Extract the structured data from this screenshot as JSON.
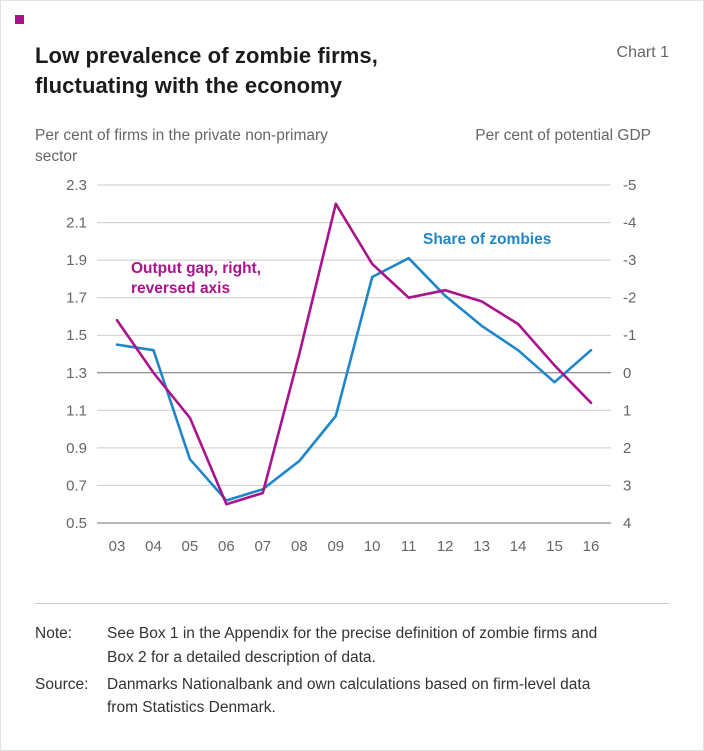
{
  "header": {
    "title_line1": "Low prevalence of zombie firms,",
    "title_line2": "fluctuating with the economy",
    "chart_label": "Chart 1"
  },
  "axis_titles": {
    "left": "Per cent of firms in the private non-primary sector",
    "right": "Per cent of potential GDP"
  },
  "colors": {
    "blue": "#1f86c9",
    "magenta": "#a9138c",
    "grid": "#cccccc",
    "axis_strong": "#707070",
    "tick_text": "#666666"
  },
  "chart_data": {
    "type": "line",
    "x": [
      "03",
      "04",
      "05",
      "06",
      "07",
      "08",
      "09",
      "10",
      "11",
      "12",
      "13",
      "14",
      "15",
      "16"
    ],
    "series": [
      {
        "name": "Share of zombies",
        "axis": "left",
        "color": "#1f86c9",
        "values": [
          1.45,
          1.42,
          0.84,
          0.62,
          0.68,
          0.83,
          1.07,
          1.81,
          1.91,
          1.71,
          1.55,
          1.42,
          1.25,
          1.42
        ]
      },
      {
        "name": "Output gap",
        "axis": "right",
        "color": "#a9138c",
        "values": [
          -1.4,
          0.0,
          1.2,
          3.5,
          3.2,
          -0.5,
          -4.5,
          -2.9,
          -2.0,
          -2.2,
          -1.9,
          -1.3,
          -0.2,
          0.8
        ]
      }
    ],
    "left_axis": {
      "title": "Per cent of firms in the private non-primary sector",
      "min": 0.5,
      "max": 2.3,
      "ticks": [
        2.3,
        2.1,
        1.9,
        1.7,
        1.5,
        1.3,
        1.1,
        0.9,
        0.7,
        0.5
      ]
    },
    "right_axis": {
      "title": "Per cent of potential GDP",
      "min": -5,
      "max": 4,
      "reversed": true,
      "ticks": [
        -5,
        -4,
        -3,
        -2,
        -1,
        0,
        1,
        2,
        3,
        4
      ]
    },
    "legend_position": "annotations-on-plot",
    "grid": true,
    "annotations": [
      {
        "id": "output-gap",
        "text": "Output gap, right,\nreversed axis",
        "color_key": "magenta"
      },
      {
        "id": "share-of-zombies",
        "text": "Share of zombies",
        "color_key": "blue"
      }
    ]
  },
  "footer": {
    "note_label": "Note:",
    "note_text": "See Box 1 in the Appendix for the precise definition of zombie firms and Box 2 for a detailed description of data.",
    "source_label": "Source:",
    "source_text": "Danmarks Nationalbank and own calculations based on firm-level data from Statistics Denmark."
  }
}
